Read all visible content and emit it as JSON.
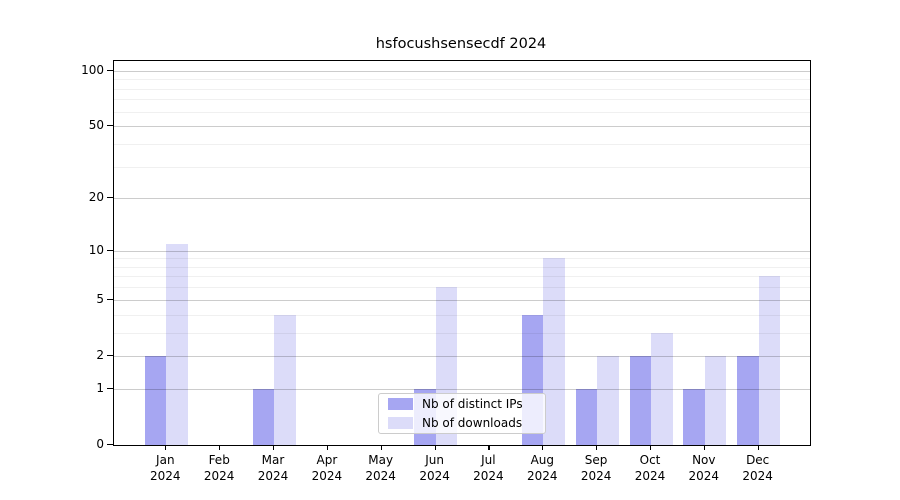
{
  "title": "hsfocushsensecdf 2024",
  "legend": {
    "items": [
      {
        "label": "Nb of distinct IPs",
        "color": "#a6a6f2"
      },
      {
        "label": "Nb of downloads",
        "color": "#dcdcf9"
      }
    ]
  },
  "y_axis": {
    "tick_labels": [
      "0",
      "1",
      "2",
      "5",
      "10",
      "20",
      "50",
      "100"
    ]
  },
  "x_axis": {
    "months": [
      "Jan",
      "Feb",
      "Mar",
      "Apr",
      "May",
      "Jun",
      "Jul",
      "Aug",
      "Sep",
      "Oct",
      "Nov",
      "Dec"
    ],
    "year": "2024"
  },
  "chart_data": {
    "type": "bar",
    "title": "hsfocushsensecdf 2024",
    "categories": [
      "Jan 2024",
      "Feb 2024",
      "Mar 2024",
      "Apr 2024",
      "May 2024",
      "Jun 2024",
      "Jul 2024",
      "Aug 2024",
      "Sep 2024",
      "Oct 2024",
      "Nov 2024",
      "Dec 2024"
    ],
    "series": [
      {
        "name": "Nb of distinct IPs",
        "color": "#a6a6f2",
        "values": [
          2,
          0,
          1,
          0,
          0,
          1,
          0,
          4,
          1,
          2,
          1,
          2
        ]
      },
      {
        "name": "Nb of downloads",
        "color": "#dcdcf9",
        "values": [
          11,
          0,
          4,
          0,
          0,
          6,
          0,
          9,
          2,
          3,
          2,
          7
        ]
      }
    ],
    "xlabel": "",
    "ylabel": "",
    "yscale": "symlog (linear 0-1, log above; positions proportional to ln(1+v))",
    "ylim": [
      0,
      113
    ],
    "y_major_ticks": [
      0,
      1,
      2,
      5,
      10,
      20,
      50,
      100
    ],
    "y_minor_gridlines": [
      3,
      4,
      6,
      7,
      8,
      9,
      30,
      40,
      60,
      70,
      80,
      90
    ],
    "grid": "on, horizontal only, drawn over bars",
    "legend_position": "inside lower-center-left, semi-transparent box"
  }
}
